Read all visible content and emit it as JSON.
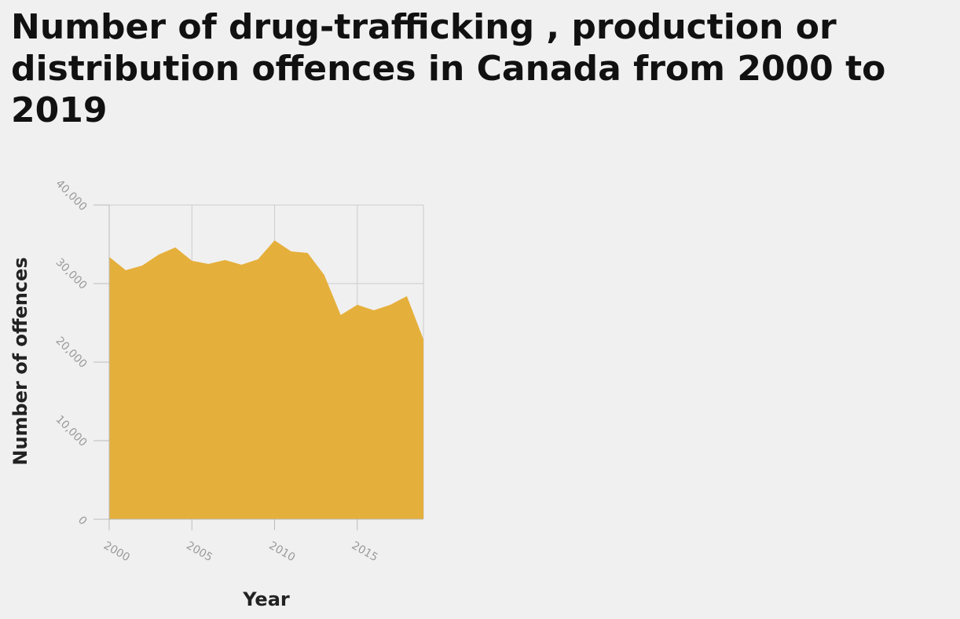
{
  "chart_data": {
    "type": "area",
    "title": "Number of drug-trafficking , production or distribution offences in Canada from 2000 to 2019",
    "xlabel": "Year",
    "ylabel": "Number of offences",
    "x": [
      2000,
      2001,
      2002,
      2003,
      2004,
      2005,
      2006,
      2007,
      2008,
      2009,
      2010,
      2011,
      2012,
      2013,
      2014,
      2015,
      2016,
      2017,
      2018,
      2019
    ],
    "values": [
      33400,
      31700,
      32300,
      33700,
      34600,
      32900,
      32500,
      33000,
      32400,
      33100,
      35500,
      34100,
      33900,
      31100,
      26000,
      27300,
      26600,
      27300,
      28400,
      22900
    ],
    "xlim": [
      2000,
      2019
    ],
    "ylim": [
      0,
      40000
    ],
    "xticks": [
      2000,
      2005,
      2010,
      2015
    ],
    "xtick_labels": [
      "2000",
      "2005",
      "2010",
      "2015"
    ],
    "yticks": [
      0,
      10000,
      20000,
      30000,
      40000
    ],
    "ytick_labels": [
      "0",
      "10,000",
      "20,000",
      "30,000",
      "40,000"
    ],
    "grid": true,
    "fill_color": "#e5af3b",
    "grid_color": "#cccccc",
    "axis_color": "#bbbbbb"
  }
}
